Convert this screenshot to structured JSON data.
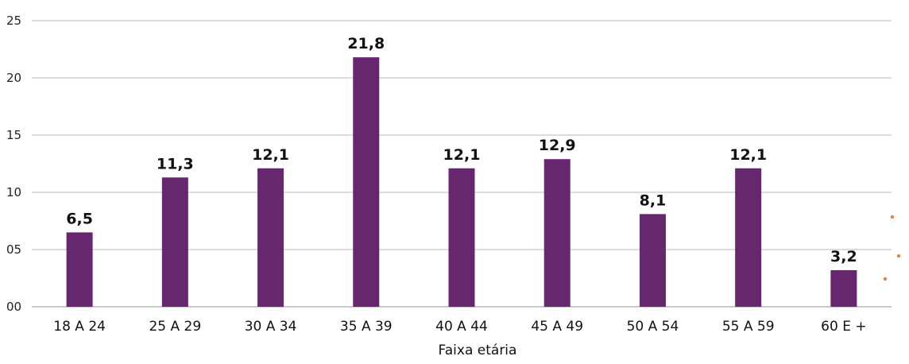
{
  "chart_data": {
    "type": "bar",
    "categories": [
      "18 A 24",
      "25 A 29",
      "30 A 34",
      "35 A 39",
      "40 A 44",
      "45 A 49",
      "50 A 54",
      "55 A 59",
      "60 E +"
    ],
    "values": [
      6.5,
      11.3,
      12.1,
      21.8,
      12.1,
      12.9,
      8.1,
      12.1,
      3.2
    ],
    "value_labels": [
      "6,5",
      "11,3",
      "12,1",
      "21,8",
      "12,1",
      "12,9",
      "8,1",
      "12,1",
      "3,2"
    ],
    "title": "",
    "xlabel": "Faixa etária",
    "ylabel": "",
    "ylim": [
      0,
      25
    ],
    "yticks": [
      0,
      5,
      10,
      15,
      20,
      25
    ],
    "ytick_labels": [
      "00",
      "05",
      "10",
      "15",
      "20",
      "25"
    ],
    "grid": true,
    "legend": "none",
    "bar_color": "#66276f",
    "grid_color": "#b9b9b9",
    "decoration_color": "#e8804a"
  }
}
